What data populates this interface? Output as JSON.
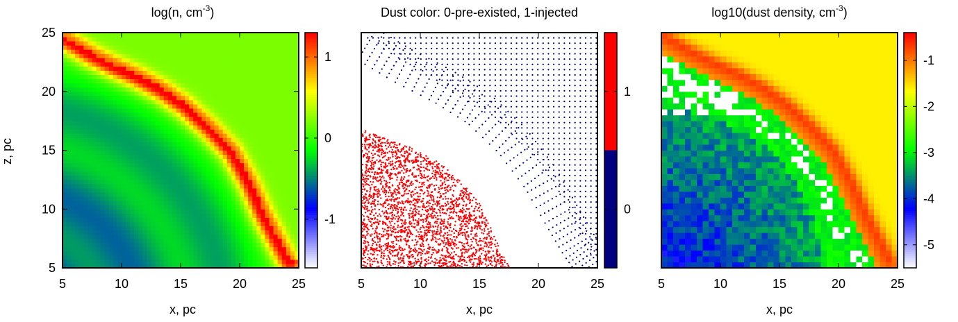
{
  "chart_data": [
    {
      "type": "heatmap",
      "title": "log(n, cm",
      "title_sup": "-3",
      "title_end": ")",
      "xlabel": "x, pc",
      "ylabel": "z, pc",
      "xlim": [
        5,
        25
      ],
      "ylim": [
        5,
        25
      ],
      "xticks": [
        "5",
        "10",
        "15",
        "20",
        "25"
      ],
      "yticks": [
        "5",
        "10",
        "15",
        "20",
        "25"
      ],
      "colorbar": {
        "range": [
          -1.6,
          1.3
        ],
        "ticks": [
          "-1",
          "0",
          "1"
        ],
        "tick_values": [
          -1,
          0,
          1
        ],
        "colors": [
          "#ffffff",
          "#0000ff",
          "#00ff00",
          "#ffff00",
          "#ff0000"
        ]
      },
      "shell_curve": [
        [
          5.3,
          24.6
        ],
        [
          7.5,
          23.3
        ],
        [
          9.5,
          22.3
        ],
        [
          11.5,
          21.4
        ],
        [
          13.5,
          20.3
        ],
        [
          15.5,
          18.9
        ],
        [
          17.5,
          17.1
        ],
        [
          19.5,
          15.0
        ],
        [
          21.0,
          12.3
        ],
        [
          22.2,
          9.6
        ],
        [
          23.3,
          7.5
        ],
        [
          24.3,
          5.6
        ]
      ],
      "peak_value": 1.0,
      "interior_value": -0.6,
      "ambient_value": 0.2
    },
    {
      "type": "scatter",
      "title": "Dust color: 0-pre-existed, 1-injected",
      "xlabel": "x, pc",
      "ylabel": "",
      "xlim": [
        5,
        25
      ],
      "ylim": [
        5,
        25
      ],
      "xticks": [
        "5",
        "10",
        "15",
        "20",
        "25"
      ],
      "yticks": [],
      "colorbar": {
        "range": [
          -0.5,
          1.5
        ],
        "ticks": [
          "0",
          "1"
        ],
        "tick_values": [
          0,
          1
        ],
        "colors": [
          "#000080",
          "#ff0000"
        ]
      },
      "series": [
        {
          "name": "0",
          "color": "#000080",
          "regions": [
            {
              "kind": "grid",
              "xrange": [
                16.5,
                24.9
              ],
              "yrange": [
                5.5,
                24.8
              ],
              "spacing": 0.45,
              "below_curve": [
                [
                  5,
                  24.5
                ],
                [
                  9,
                  21.8
                ],
                [
                  13,
                  19.5
                ],
                [
                  16,
                  17.5
                ],
                [
                  19,
                  14.8
                ],
                [
                  21.5,
                  11.5
                ],
                [
                  23,
                  8.5
                ],
                [
                  24.5,
                  5.5
                ]
              ]
            },
            {
              "kind": "grid",
              "xrange": [
                5,
                24.9
              ],
              "yrange": [
                20.5,
                24.8
              ],
              "spacing": 0.45,
              "below_curve": [
                [
                  5,
                  24.5
                ],
                [
                  9,
                  21.8
                ],
                [
                  13,
                  19.5
                ],
                [
                  16,
                  17.5
                ],
                [
                  19,
                  14.8
                ],
                [
                  21.5,
                  11.5
                ],
                [
                  23,
                  8.5
                ],
                [
                  24.5,
                  5.5
                ]
              ]
            },
            {
              "kind": "shell",
              "curve": [
                [
                  5.5,
                  24.0
                ],
                [
                  8.5,
                  22.2
                ],
                [
                  12.0,
                  20.4
                ],
                [
                  15.0,
                  18.5
                ],
                [
                  17.8,
                  15.8
                ],
                [
                  20.2,
                  12.6
                ],
                [
                  22.0,
                  9.4
                ],
                [
                  23.4,
                  7.0
                ],
                [
                  24.6,
                  5.3
                ]
              ],
              "width": 2.8
            }
          ]
        },
        {
          "name": "1",
          "color": "#ff0000",
          "regions": [
            {
              "kind": "filled",
              "boundary": [
                [
                  5,
                  16.8
                ],
                [
                  7.5,
                  15.9
                ],
                [
                  10.0,
                  14.9
                ],
                [
                  12.0,
                  13.7
                ],
                [
                  13.8,
                  12.0
                ],
                [
                  15.2,
                  10.2
                ],
                [
                  16.2,
                  8.0
                ],
                [
                  17.0,
                  6.2
                ],
                [
                  17.6,
                  5.0
                ]
              ],
              "count": 5000
            }
          ]
        }
      ]
    },
    {
      "type": "heatmap",
      "title": "log10(dust density, cm",
      "title_sup": "-3",
      "title_end": ")",
      "xlabel": "x, pc",
      "ylabel": "",
      "xlim": [
        5,
        25
      ],
      "ylim": [
        5,
        25
      ],
      "xticks": [
        "5",
        "10",
        "15",
        "20",
        "25"
      ],
      "yticks": [],
      "colorbar": {
        "range": [
          -5.5,
          -0.4
        ],
        "ticks": [
          "-1",
          "-2",
          "-3",
          "-4",
          "-5"
        ],
        "tick_values": [
          -1,
          -2,
          -3,
          -4,
          -5
        ],
        "colors": [
          "#ffffff",
          "#0000ff",
          "#00ff00",
          "#ffff00",
          "#ff0000"
        ]
      },
      "shell_curve": [
        [
          5.3,
          24.6
        ],
        [
          7.5,
          23.3
        ],
        [
          9.5,
          22.3
        ],
        [
          11.5,
          21.4
        ],
        [
          13.5,
          20.3
        ],
        [
          15.5,
          18.9
        ],
        [
          17.5,
          17.1
        ],
        [
          19.5,
          15.0
        ],
        [
          21.0,
          12.3
        ],
        [
          22.2,
          9.6
        ],
        [
          23.3,
          7.5
        ],
        [
          24.3,
          5.6
        ]
      ],
      "peak_value": -0.7,
      "ambient_value": -1.6,
      "inner_value": -3.0,
      "core_value": -4.2
    }
  ]
}
